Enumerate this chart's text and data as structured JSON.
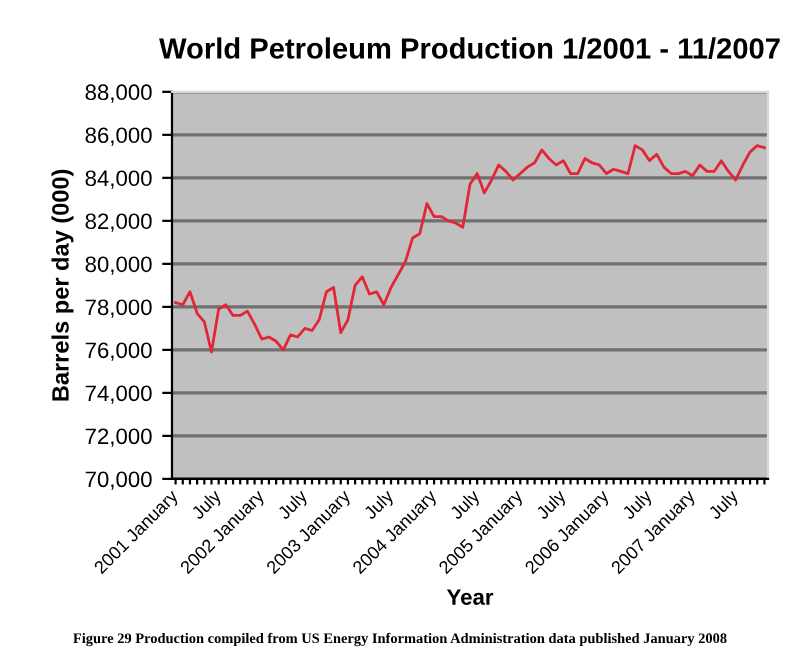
{
  "chart_data": {
    "type": "line",
    "title": "World Petroleum Production 1/2001 - 11/2007",
    "xlabel": "Year",
    "ylabel": "Barrels per day (000)",
    "annotations": [
      "Figure 29 Production compiled from US Energy Information Administration data published January 2008"
    ],
    "categories": [
      "2001 January",
      null,
      null,
      null,
      null,
      null,
      "July",
      null,
      null,
      null,
      null,
      null,
      "2002 January",
      null,
      null,
      null,
      null,
      null,
      "July",
      null,
      null,
      null,
      null,
      null,
      "2003 January",
      null,
      null,
      null,
      null,
      null,
      "July",
      null,
      null,
      null,
      null,
      null,
      "2004 January",
      null,
      null,
      null,
      null,
      null,
      "July",
      null,
      null,
      null,
      null,
      null,
      "2005 January",
      null,
      null,
      null,
      null,
      null,
      "July",
      null,
      null,
      null,
      null,
      null,
      "2006 January",
      null,
      null,
      null,
      null,
      null,
      "July",
      null,
      null,
      null,
      null,
      null,
      "2007 January",
      null,
      null,
      null,
      null,
      null,
      "July",
      null,
      null,
      null,
      null
    ],
    "series": [
      {
        "color": "#e32636",
        "values": [
          78200,
          78100,
          78700,
          77700,
          77300,
          75900,
          77900,
          78100,
          77600,
          77600,
          77800,
          77200,
          76500,
          76600,
          76400,
          76000,
          76700,
          76600,
          77000,
          76900,
          77400,
          78700,
          78900,
          76800,
          77400,
          79000,
          79400,
          78600,
          78700,
          78100,
          78900,
          79500,
          80100,
          81200,
          81400,
          82800,
          82200,
          82200,
          82000,
          81900,
          81700,
          83700,
          84200,
          83300,
          83900,
          84600,
          84300,
          83900,
          84200,
          84500,
          84700,
          85300,
          84900,
          84600,
          84800,
          84200,
          84200,
          84900,
          84700,
          84600,
          84200,
          84400,
          84300,
          84200,
          85500,
          85300,
          84800,
          85100,
          84500,
          84200,
          84200,
          84300,
          84100,
          84600,
          84300,
          84300,
          84800,
          84300,
          83900,
          84600,
          85200,
          85500,
          85400
        ]
      }
    ],
    "ylim": [
      70000,
      88000
    ],
    "yticks": [
      {
        "value": 70000,
        "label": "70,000"
      },
      {
        "value": 72000,
        "label": "72,000"
      },
      {
        "value": 74000,
        "label": "74,000"
      },
      {
        "value": 76000,
        "label": "76,000"
      },
      {
        "value": 78000,
        "label": "78,000"
      },
      {
        "value": 80000,
        "label": "80,000"
      },
      {
        "value": 82000,
        "label": "82,000"
      },
      {
        "value": 84000,
        "label": "84,000"
      },
      {
        "value": 86000,
        "label": "86,000"
      },
      {
        "value": 88000,
        "label": "88,000"
      }
    ],
    "grid": "y",
    "legend": false,
    "marker": "none",
    "line_style": "solid"
  }
}
